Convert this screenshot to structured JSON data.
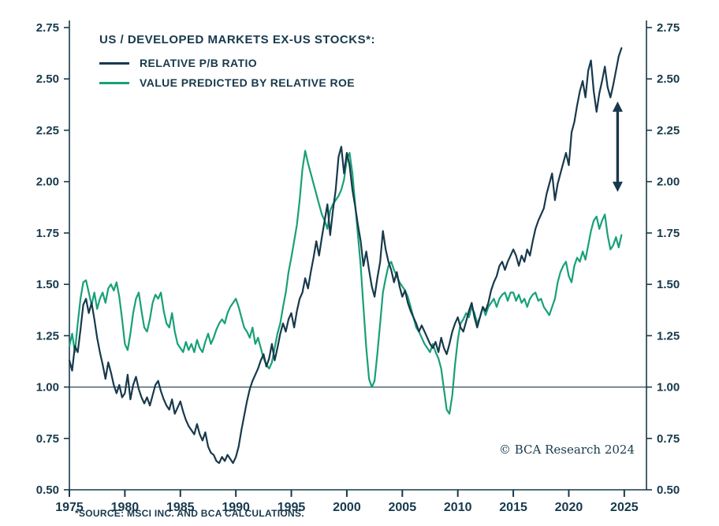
{
  "chart_data": {
    "type": "line",
    "title": "US / DEVELOPED MARKETS EX-US STOCKS*:",
    "copyright": "© BCA Research 2024",
    "source_note": "*SOURCE: MSCI INC. AND BCA CALCULATIONS.",
    "colors": {
      "navy": "#17394c",
      "green": "#18a078",
      "background": "#ffffff"
    },
    "xlim": [
      1975,
      2027
    ],
    "ylim": [
      0.5,
      2.75
    ],
    "x_ticks": [
      1975,
      1980,
      1985,
      1990,
      1995,
      2000,
      2005,
      2010,
      2015,
      2020,
      2025
    ],
    "y_ticks": [
      0.5,
      0.75,
      1.0,
      1.25,
      1.5,
      1.75,
      2.0,
      2.25,
      2.5,
      2.75
    ],
    "reference_line": 1.0,
    "legend_position": "top-left",
    "grid": false,
    "x_start": 1975,
    "x_step": 0.25,
    "annotation_arrow": {
      "x": 2024.4,
      "y_from": 1.95,
      "y_to": 2.39
    },
    "series": [
      {
        "name": "RELATIVE P/B RATIO",
        "color": "#17394c",
        "values": [
          1.13,
          1.08,
          1.2,
          1.17,
          1.28,
          1.4,
          1.43,
          1.36,
          1.41,
          1.33,
          1.24,
          1.17,
          1.11,
          1.04,
          1.12,
          1.07,
          1.01,
          0.97,
          1.01,
          0.95,
          0.97,
          1.06,
          0.94,
          1.01,
          1.05,
          0.99,
          0.95,
          0.92,
          0.95,
          0.91,
          0.96,
          1.01,
          1.03,
          0.98,
          0.94,
          0.91,
          0.89,
          0.94,
          0.87,
          0.9,
          0.93,
          0.88,
          0.84,
          0.81,
          0.79,
          0.77,
          0.82,
          0.77,
          0.74,
          0.78,
          0.71,
          0.68,
          0.67,
          0.64,
          0.63,
          0.66,
          0.64,
          0.67,
          0.65,
          0.63,
          0.66,
          0.71,
          0.79,
          0.86,
          0.93,
          0.99,
          1.03,
          1.06,
          1.09,
          1.13,
          1.16,
          1.1,
          1.14,
          1.21,
          1.13,
          1.19,
          1.26,
          1.31,
          1.27,
          1.33,
          1.36,
          1.29,
          1.37,
          1.43,
          1.46,
          1.53,
          1.48,
          1.56,
          1.63,
          1.71,
          1.64,
          1.73,
          1.81,
          1.89,
          1.74,
          1.86,
          1.96,
          2.12,
          2.17,
          2.04,
          2.14,
          2.08,
          1.96,
          1.88,
          1.79,
          1.71,
          1.59,
          1.66,
          1.57,
          1.49,
          1.44,
          1.53,
          1.61,
          1.76,
          1.67,
          1.61,
          1.57,
          1.51,
          1.56,
          1.49,
          1.44,
          1.47,
          1.41,
          1.37,
          1.34,
          1.31,
          1.27,
          1.3,
          1.27,
          1.24,
          1.21,
          1.19,
          1.22,
          1.17,
          1.24,
          1.19,
          1.16,
          1.21,
          1.27,
          1.31,
          1.34,
          1.29,
          1.27,
          1.32,
          1.37,
          1.41,
          1.34,
          1.29,
          1.34,
          1.39,
          1.37,
          1.41,
          1.47,
          1.51,
          1.54,
          1.59,
          1.61,
          1.57,
          1.61,
          1.64,
          1.67,
          1.64,
          1.59,
          1.64,
          1.61,
          1.67,
          1.64,
          1.71,
          1.77,
          1.81,
          1.84,
          1.87,
          1.94,
          1.99,
          2.04,
          1.91,
          1.99,
          2.04,
          2.09,
          2.14,
          2.08,
          2.24,
          2.29,
          2.37,
          2.44,
          2.49,
          2.41,
          2.54,
          2.59,
          2.44,
          2.34,
          2.43,
          2.49,
          2.56,
          2.46,
          2.41,
          2.47,
          2.54,
          2.61,
          2.65
        ]
      },
      {
        "name": "VALUE PREDICTED BY RELATIVE ROE",
        "color": "#18a078",
        "values": [
          1.2,
          1.26,
          1.17,
          1.31,
          1.43,
          1.51,
          1.52,
          1.46,
          1.4,
          1.46,
          1.38,
          1.43,
          1.46,
          1.41,
          1.48,
          1.5,
          1.47,
          1.51,
          1.44,
          1.33,
          1.21,
          1.18,
          1.26,
          1.36,
          1.43,
          1.46,
          1.37,
          1.29,
          1.27,
          1.33,
          1.41,
          1.45,
          1.43,
          1.46,
          1.37,
          1.31,
          1.29,
          1.36,
          1.27,
          1.21,
          1.19,
          1.17,
          1.22,
          1.18,
          1.21,
          1.17,
          1.23,
          1.19,
          1.17,
          1.22,
          1.26,
          1.21,
          1.24,
          1.28,
          1.31,
          1.33,
          1.31,
          1.36,
          1.39,
          1.41,
          1.43,
          1.39,
          1.34,
          1.29,
          1.27,
          1.24,
          1.29,
          1.21,
          1.24,
          1.19,
          1.14,
          1.11,
          1.09,
          1.12,
          1.19,
          1.26,
          1.31,
          1.39,
          1.46,
          1.56,
          1.63,
          1.71,
          1.79,
          1.91,
          2.06,
          2.15,
          2.09,
          2.04,
          1.99,
          1.94,
          1.89,
          1.84,
          1.81,
          1.77,
          1.86,
          1.89,
          1.91,
          1.93,
          1.96,
          2.01,
          2.11,
          2.14,
          2.04,
          1.89,
          1.74,
          1.59,
          1.39,
          1.19,
          1.04,
          1.0,
          1.03,
          1.16,
          1.31,
          1.46,
          1.53,
          1.59,
          1.61,
          1.57,
          1.54,
          1.51,
          1.49,
          1.47,
          1.44,
          1.39,
          1.34,
          1.29,
          1.27,
          1.24,
          1.21,
          1.19,
          1.17,
          1.21,
          1.17,
          1.14,
          1.09,
          0.99,
          0.89,
          0.87,
          0.96,
          1.11,
          1.23,
          1.31,
          1.33,
          1.36,
          1.34,
          1.39,
          1.36,
          1.31,
          1.34,
          1.39,
          1.35,
          1.39,
          1.41,
          1.43,
          1.39,
          1.43,
          1.45,
          1.46,
          1.42,
          1.46,
          1.46,
          1.42,
          1.45,
          1.41,
          1.43,
          1.39,
          1.43,
          1.45,
          1.46,
          1.42,
          1.43,
          1.39,
          1.37,
          1.35,
          1.39,
          1.43,
          1.51,
          1.56,
          1.59,
          1.61,
          1.54,
          1.51,
          1.59,
          1.63,
          1.61,
          1.66,
          1.62,
          1.69,
          1.76,
          1.81,
          1.83,
          1.77,
          1.81,
          1.84,
          1.74,
          1.67,
          1.69,
          1.73,
          1.68,
          1.74
        ]
      }
    ]
  }
}
